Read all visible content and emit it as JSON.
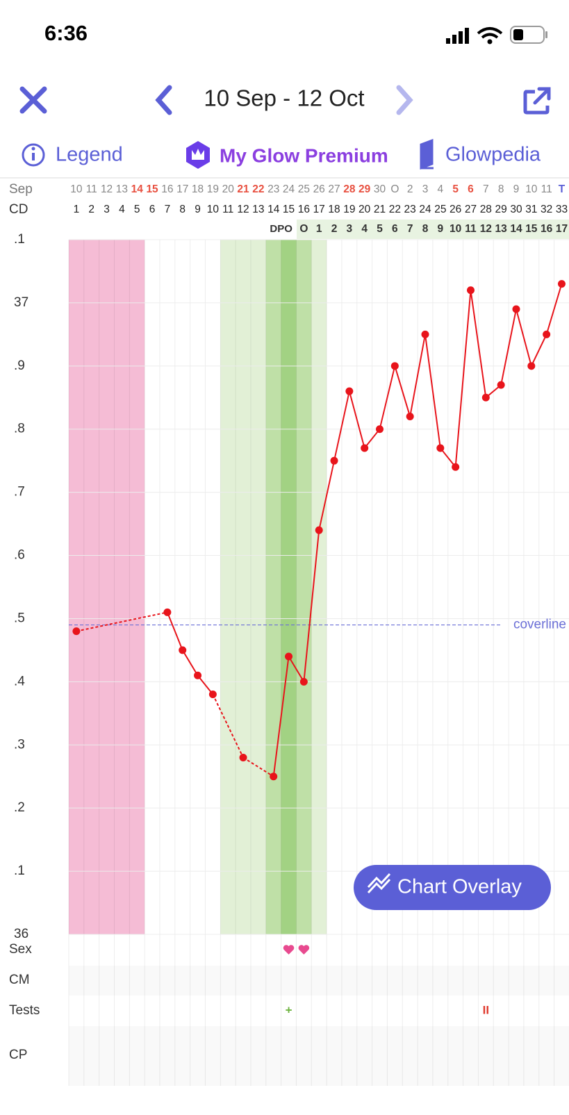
{
  "status_bar": {
    "time": "6:36"
  },
  "nav": {
    "title": "10 Sep - 12 Oct"
  },
  "tabs": [
    "Legend",
    "My Glow Premium",
    "Glowpedia"
  ],
  "calendar": {
    "month_label": "Sep",
    "cd_label": "CD",
    "dpo_label": "DPO",
    "dates": [
      10,
      11,
      12,
      13,
      14,
      15,
      16,
      17,
      18,
      19,
      20,
      21,
      22,
      23,
      24,
      25,
      26,
      27,
      28,
      29,
      30,
      "O",
      2,
      3,
      4,
      5,
      6,
      7,
      8,
      9,
      10,
      11,
      "T"
    ],
    "dpo": [
      "O",
      1,
      2,
      3,
      4,
      5,
      6,
      7,
      8,
      9,
      10,
      11,
      12,
      13,
      14,
      15,
      16,
      17
    ]
  },
  "chart_data": {
    "type": "line",
    "categories": [
      1,
      2,
      3,
      4,
      5,
      6,
      7,
      8,
      9,
      10,
      11,
      12,
      13,
      14,
      15,
      16,
      17,
      18,
      19,
      20,
      21,
      22,
      23,
      24,
      25,
      26,
      27,
      28,
      29,
      30,
      31,
      32,
      33
    ],
    "series": [
      {
        "color": "#e8141b",
        "values": [
          36.48,
          null,
          null,
          null,
          null,
          null,
          36.51,
          36.45,
          36.41,
          36.38,
          null,
          36.28,
          null,
          36.25,
          36.44,
          36.4,
          36.64,
          36.75,
          36.86,
          36.77,
          36.8,
          36.9,
          36.82,
          36.95,
          36.77,
          36.74,
          37.02,
          36.85,
          36.87,
          36.99,
          36.9,
          36.95,
          37.03
        ]
      }
    ],
    "coverline": {
      "label": "coverline",
      "value": 36.49,
      "color": "#6b6fd6"
    },
    "ylim": [
      36,
      37.1
    ],
    "yticks": [
      {
        "value": 37.1,
        "label": ".1"
      },
      37,
      {
        "value": 36.9,
        "label": ".9"
      },
      {
        "value": 36.8,
        "label": ".8"
      },
      {
        "value": 36.7,
        "label": ".7"
      },
      {
        "value": 36.6,
        "label": ".6"
      },
      {
        "value": 36.5,
        "label": ".5"
      },
      {
        "value": 36.4,
        "label": ".4"
      },
      {
        "value": 36.3,
        "label": ".3"
      },
      {
        "value": 36.2,
        "label": ".2"
      },
      {
        "value": 36.1,
        "label": ".1"
      },
      36
    ],
    "grid": true
  },
  "rows": [
    {
      "label": "Sex"
    },
    {
      "label": "CM"
    },
    {
      "label": "Tests",
      "entries": [
        null,
        null,
        null,
        null,
        null,
        null,
        null,
        null,
        null,
        null,
        null,
        null,
        null,
        null,
        "+",
        null,
        null,
        null,
        null,
        null,
        null,
        null,
        null,
        null,
        null,
        null,
        null,
        "II",
        null,
        null,
        null,
        null,
        null
      ]
    },
    {
      "label": "CP"
    }
  ],
  "button": "Chart Overlay"
}
